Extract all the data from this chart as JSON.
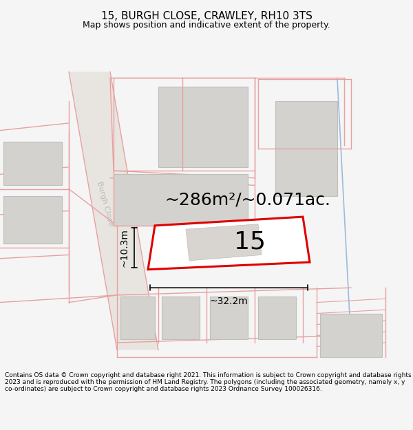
{
  "title": "15, BURGH CLOSE, CRAWLEY, RH10 3TS",
  "subtitle": "Map shows position and indicative extent of the property.",
  "area_text": "~286m²/~0.071ac.",
  "width_text": "~32.2m",
  "height_text": "~10.3m",
  "number_text": "15",
  "footer_text": "Contains OS data © Crown copyright and database right 2021. This information is subject to Crown copyright and database rights 2023 and is reproduced with the permission of HM Land Registry. The polygons (including the associated geometry, namely x, y co-ordinates) are subject to Crown copyright and database rights 2023 Ordnance Survey 100026316.",
  "bg_color": "#f5f5f5",
  "map_bg": "#f2f0ed",
  "plot_outline_color": "#dd0000",
  "plot_fill": "#ffffff",
  "block_fill": "#d4d2ce",
  "block_edge": "#c0beba",
  "pink_line": "#e8a0a0",
  "pink_fill": "#f5d8d8",
  "blue_line": "#99bbdd",
  "dim_color": "#000000",
  "street_label_color": "#bbbbbb",
  "street_label": "Burgh Close",
  "title_fontsize": 11,
  "subtitle_fontsize": 9,
  "footer_fontsize": 6.5,
  "area_fontsize": 18,
  "number_fontsize": 26,
  "dim_fontsize": 10
}
